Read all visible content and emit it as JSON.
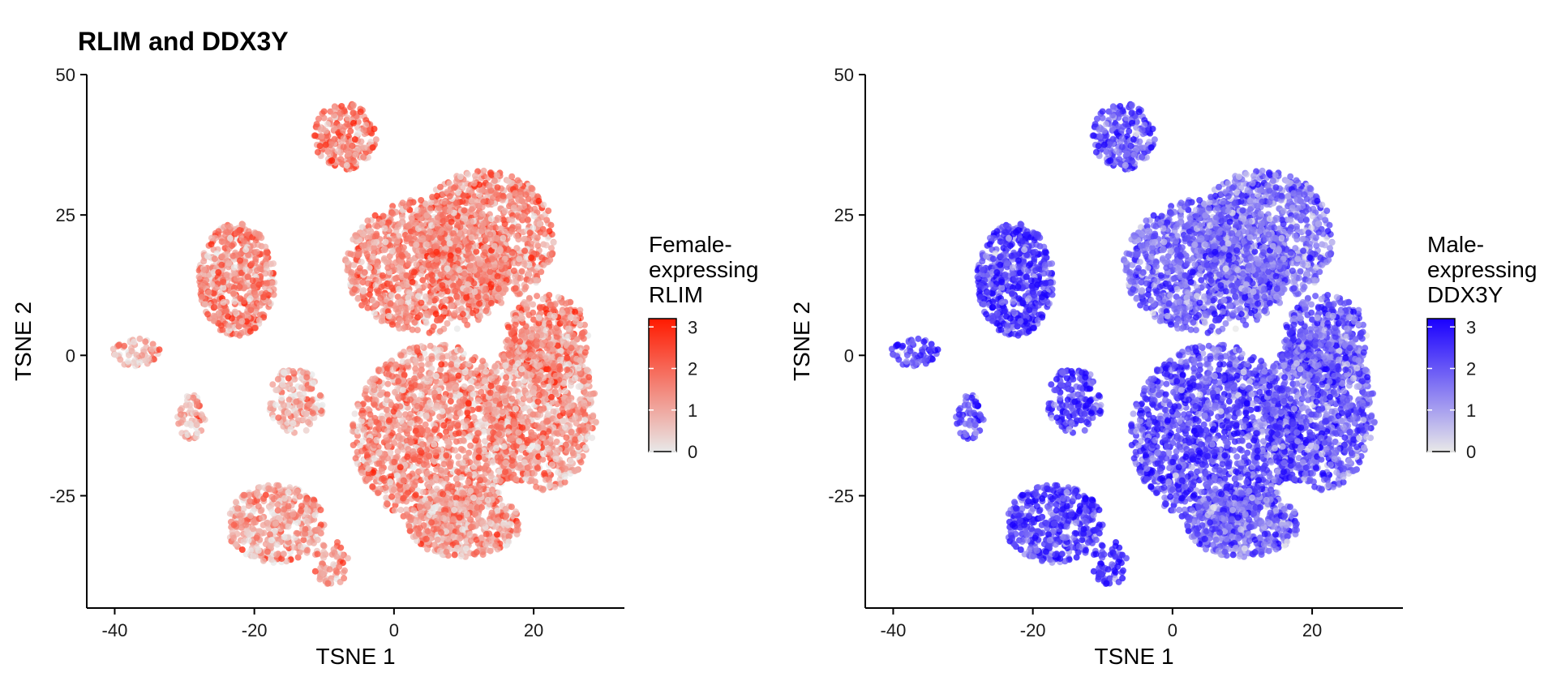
{
  "title": "RLIM and DDX3Y",
  "chart_data": [
    {
      "type": "scatter",
      "gene": "RLIM",
      "xlabel": "TSNE 1",
      "ylabel": "TSNE 2",
      "xlim": [
        -44,
        33
      ],
      "ylim": [
        -45,
        50
      ],
      "x_ticks": [
        -40,
        -20,
        0,
        20
      ],
      "x_tick_labels": [
        "-40",
        "-20",
        "0",
        "20"
      ],
      "y_ticks": [
        -25,
        0,
        25,
        50
      ],
      "y_tick_labels": [
        "-25",
        "0",
        "25",
        "50"
      ],
      "legend": {
        "title_lines": [
          "Female-",
          "expressing",
          "RLIM"
        ],
        "min": 0,
        "max": 3.2,
        "ticks": [
          0,
          1,
          2,
          3
        ],
        "tick_labels": [
          "0",
          "1",
          "2",
          "3"
        ],
        "low_color": "#e8e8e8",
        "high_color": "#ff1a00",
        "placement": "right"
      },
      "clusters": [
        {
          "cx": -7,
          "cy": 39,
          "rx": 4.5,
          "ry": 6,
          "mean": 1.7,
          "n": 220
        },
        {
          "cx": -22.5,
          "cy": 13.5,
          "rx": 5.5,
          "ry": 10,
          "mean": 1.4,
          "n": 550
        },
        {
          "cx": -37,
          "cy": 0.5,
          "rx": 3.5,
          "ry": 2.5,
          "mean": 1.0,
          "n": 60
        },
        {
          "cx": -29,
          "cy": -11,
          "rx": 2,
          "ry": 4,
          "mean": 0.9,
          "n": 60
        },
        {
          "cx": -14,
          "cy": -8,
          "rx": 4,
          "ry": 6,
          "mean": 0.9,
          "n": 160
        },
        {
          "cx": -17,
          "cy": -30,
          "rx": 7,
          "ry": 7,
          "mean": 1.1,
          "n": 420
        },
        {
          "cx": -9,
          "cy": -37,
          "rx": 2.5,
          "ry": 4,
          "mean": 1.3,
          "n": 60
        },
        {
          "cx": 5,
          "cy": 16,
          "rx": 12,
          "ry": 12,
          "mean": 1.5,
          "n": 1100
        },
        {
          "cx": 13,
          "cy": 21,
          "rx": 10,
          "ry": 12,
          "mean": 1.4,
          "n": 900
        },
        {
          "cx": 6,
          "cy": -14,
          "rx": 12,
          "ry": 16,
          "mean": 1.3,
          "n": 1500
        },
        {
          "cx": 21,
          "cy": -10,
          "rx": 8,
          "ry": 14,
          "mean": 1.2,
          "n": 900
        },
        {
          "cx": 22,
          "cy": 3,
          "rx": 6,
          "ry": 8,
          "mean": 1.4,
          "n": 400
        },
        {
          "cx": 10,
          "cy": -30,
          "rx": 8,
          "ry": 6,
          "mean": 1.1,
          "n": 500
        }
      ]
    },
    {
      "type": "scatter",
      "gene": "DDX3Y",
      "xlabel": "TSNE 1",
      "ylabel": "TSNE 2",
      "xlim": [
        -44,
        33
      ],
      "ylim": [
        -45,
        50
      ],
      "x_ticks": [
        -40,
        -20,
        0,
        20
      ],
      "x_tick_labels": [
        "-40",
        "-20",
        "0",
        "20"
      ],
      "y_ticks": [
        -25,
        0,
        25,
        50
      ],
      "y_tick_labels": [
        "-25",
        "0",
        "25",
        "50"
      ],
      "legend": {
        "title_lines": [
          "Male-",
          "expressing",
          "DDX3Y"
        ],
        "min": 0,
        "max": 3.2,
        "ticks": [
          0,
          1,
          2,
          3
        ],
        "tick_labels": [
          "0",
          "1",
          "2",
          "3"
        ],
        "low_color": "#e8e8e8",
        "high_color": "#1a00ff",
        "placement": "right"
      },
      "clusters": [
        {
          "cx": -7,
          "cy": 39,
          "rx": 4.5,
          "ry": 6,
          "mean": 2.2,
          "n": 220
        },
        {
          "cx": -22.5,
          "cy": 13.5,
          "rx": 5.5,
          "ry": 10,
          "mean": 2.4,
          "n": 550
        },
        {
          "cx": -37,
          "cy": 0.5,
          "rx": 3.5,
          "ry": 2.5,
          "mean": 2.6,
          "n": 60
        },
        {
          "cx": -29,
          "cy": -11,
          "rx": 2,
          "ry": 4,
          "mean": 2.3,
          "n": 60
        },
        {
          "cx": -14,
          "cy": -8,
          "rx": 4,
          "ry": 6,
          "mean": 2.6,
          "n": 160
        },
        {
          "cx": -17,
          "cy": -30,
          "rx": 7,
          "ry": 7,
          "mean": 2.5,
          "n": 420
        },
        {
          "cx": -9,
          "cy": -37,
          "rx": 2.5,
          "ry": 4,
          "mean": 2.8,
          "n": 60
        },
        {
          "cx": 5,
          "cy": 16,
          "rx": 12,
          "ry": 12,
          "mean": 1.9,
          "n": 1100
        },
        {
          "cx": 13,
          "cy": 21,
          "rx": 10,
          "ry": 12,
          "mean": 1.6,
          "n": 900
        },
        {
          "cx": 6,
          "cy": -14,
          "rx": 12,
          "ry": 16,
          "mean": 2.2,
          "n": 1500
        },
        {
          "cx": 21,
          "cy": -10,
          "rx": 8,
          "ry": 14,
          "mean": 2.0,
          "n": 900
        },
        {
          "cx": 22,
          "cy": 3,
          "rx": 6,
          "ry": 8,
          "mean": 1.9,
          "n": 400
        },
        {
          "cx": 10,
          "cy": -30,
          "rx": 8,
          "ry": 6,
          "mean": 1.7,
          "n": 500
        }
      ]
    }
  ]
}
